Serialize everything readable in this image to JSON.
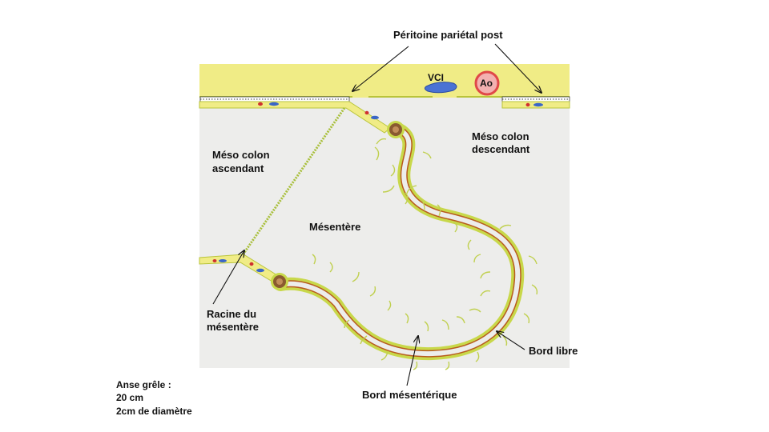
{
  "labels": {
    "peritoine": "Péritoine pariétal post",
    "vci": "VCI",
    "ao": "Ao",
    "meso_desc_1": "Méso colon",
    "meso_desc_2": "descendant",
    "meso_asc_1": "Méso colon",
    "meso_asc_2": "ascendant",
    "mesentere": "Mésentère",
    "racine_1": "Racine du",
    "racine_2": "mésentère",
    "bord_libre": "Bord libre",
    "bord_mesenterique": "Bord mésentérique"
  },
  "note": {
    "line1": "Anse grêle :",
    "line2": "20 cm",
    "line3": "2cm de diamètre"
  },
  "colors": {
    "band_yellow": "#f0f08a",
    "membrane_green": "#c8d84a",
    "bowel_red": "#b85a1e",
    "vessel_blue": "#3a66c8",
    "aorta_red": "#e04848",
    "panel_bg": "#ededeb",
    "knot_brown": "#8a5a30"
  }
}
